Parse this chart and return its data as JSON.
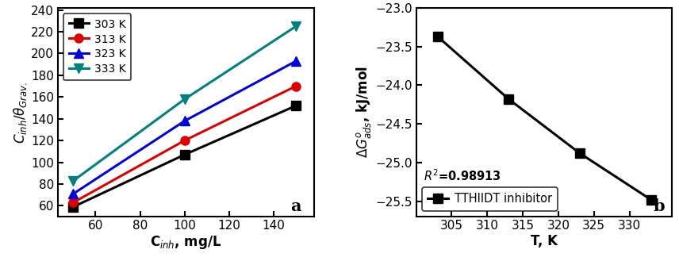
{
  "plot_a": {
    "xlabel": "C$_{inh}$, mg/L",
    "ylabel": "$C_{inh}/\\theta_{Grav.}$",
    "xlim": [
      43,
      158
    ],
    "ylim": [
      50,
      242
    ],
    "xticks": [
      60,
      80,
      100,
      120,
      140
    ],
    "yticks": [
      60,
      80,
      100,
      120,
      140,
      160,
      180,
      200,
      220,
      240
    ],
    "label_a": "a",
    "series": [
      {
        "label": "303 K",
        "color": "#000000",
        "marker": "s",
        "x": [
          50,
          100,
          150
        ],
        "y": [
          59,
          107,
          152
        ]
      },
      {
        "label": "313 K",
        "color": "#dd0000",
        "marker": "o",
        "x": [
          50,
          100,
          150
        ],
        "y": [
          63,
          120,
          170
        ]
      },
      {
        "label": "323 K",
        "color": "#0000dd",
        "marker": "^",
        "x": [
          50,
          100,
          150
        ],
        "y": [
          71,
          138,
          193
        ]
      },
      {
        "label": "333 K",
        "color": "#008080",
        "marker": "v",
        "x": [
          50,
          100,
          150
        ],
        "y": [
          83,
          158,
          225
        ]
      }
    ]
  },
  "plot_b": {
    "xlabel": "T, K",
    "ylabel": "$\\Delta G^{o}_{ads}$, kJ/mol",
    "xlim": [
      300,
      336
    ],
    "ylim": [
      -25.7,
      -23.0
    ],
    "xticks": [
      305,
      310,
      315,
      320,
      325,
      330
    ],
    "yticks": [
      -25.5,
      -25.0,
      -24.5,
      -24.0,
      -23.5,
      -23.0
    ],
    "label_b": "b",
    "legend_label": "TTHIIDT inhibitor",
    "r_squared": "$R^{2}$=0.98913",
    "x": [
      303,
      313,
      323,
      333
    ],
    "y": [
      -23.37,
      -24.18,
      -24.88,
      -25.48
    ],
    "color": "#000000",
    "marker": "s"
  }
}
